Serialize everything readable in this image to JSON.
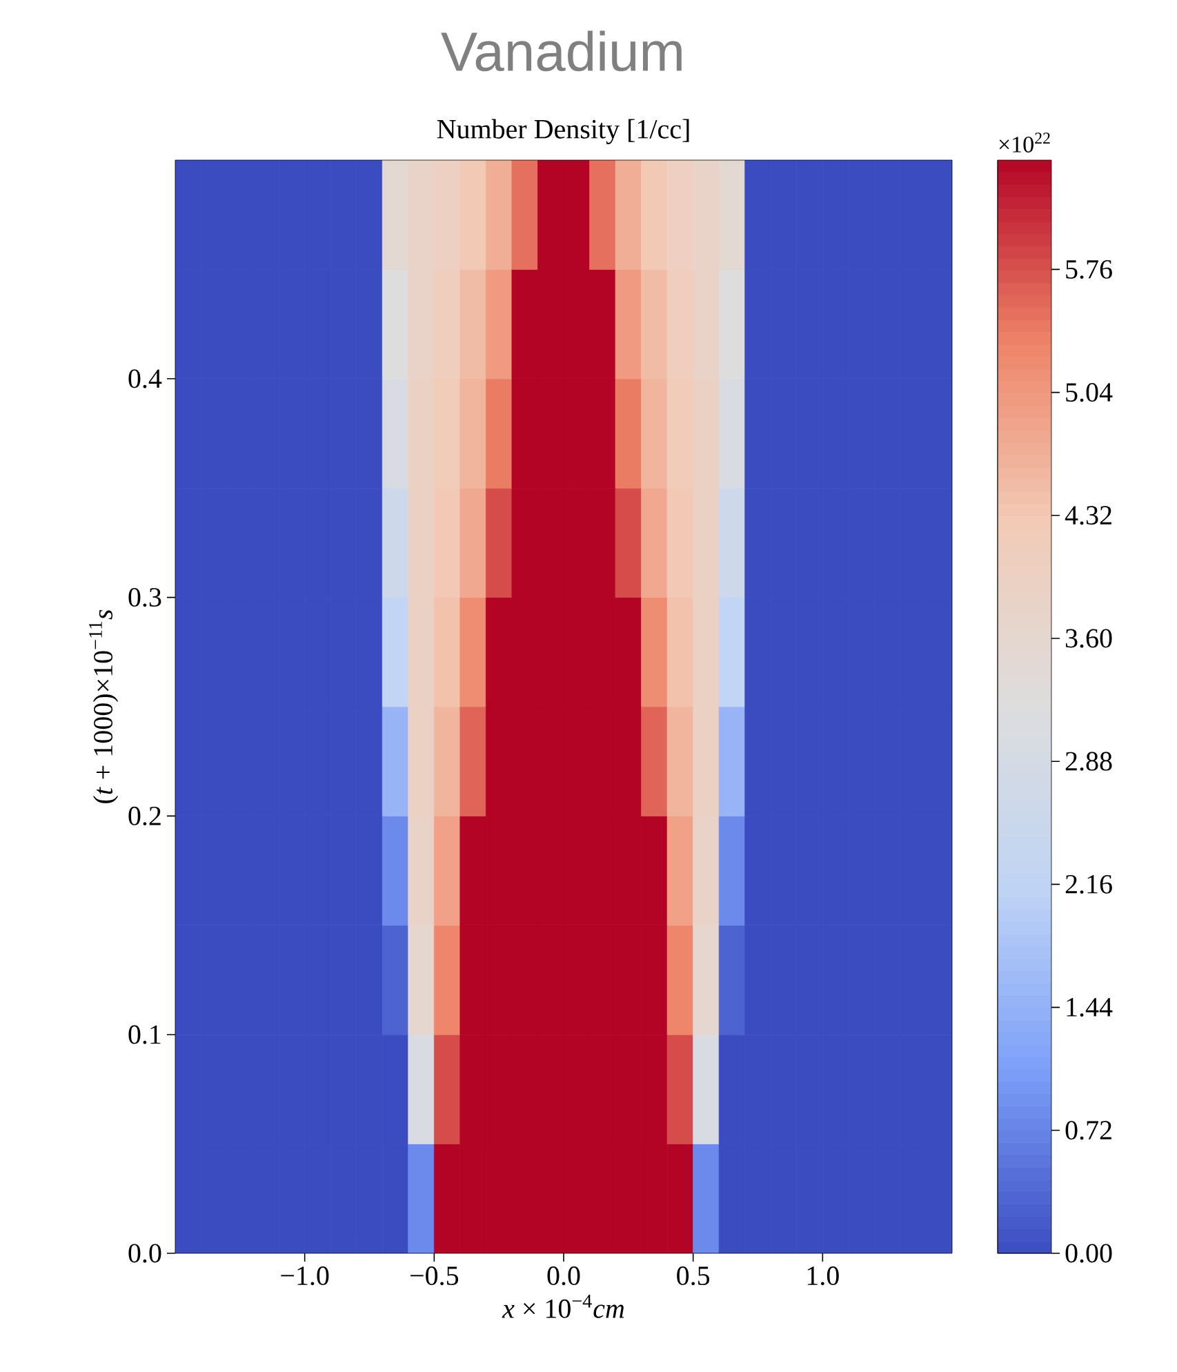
{
  "chart_data": {
    "type": "heatmap",
    "title": "Vanadium",
    "subtitle": "Number Density [1/cc]",
    "xlabel": "*x* × 10$^{−4}$*cm*",
    "ylabel": "(*t* + 1000)×10$^{−11}$*s*",
    "clabel": "×10$^{22}$",
    "x": [
      -1.45,
      -1.35,
      -1.25,
      -1.15,
      -1.05,
      -0.95,
      -0.85,
      -0.75,
      -0.65,
      -0.55,
      -0.45,
      -0.35,
      -0.25,
      -0.15,
      -0.05,
      0.05,
      0.15,
      0.25,
      0.35,
      0.45,
      0.55,
      0.65,
      0.75,
      0.85,
      0.95,
      1.05,
      1.15,
      1.25,
      1.35,
      1.45
    ],
    "y": [
      0.475,
      0.425,
      0.375,
      0.325,
      0.275,
      0.225,
      0.175,
      0.125,
      0.075,
      0.025
    ],
    "xlim": [
      -1.5,
      1.5
    ],
    "ylim": [
      0,
      0.5
    ],
    "xticks": [
      {
        "value": -1.0,
        "label": "−1.0"
      },
      {
        "value": -0.5,
        "label": "−0.5"
      },
      {
        "value": 0,
        "label": "0.0"
      },
      {
        "value": 0.5,
        "label": "0.5"
      },
      {
        "value": 1,
        "label": "1.0"
      }
    ],
    "yticks": [
      {
        "value": 0,
        "label": "0.0"
      },
      {
        "value": 0.1,
        "label": "0.1"
      },
      {
        "value": 0.2,
        "label": "0.2"
      },
      {
        "value": 0.3,
        "label": "0.3"
      },
      {
        "value": 0.4,
        "label": "0.4"
      }
    ],
    "clim": [
      0,
      6.4
    ],
    "cticks": [
      {
        "value": 0,
        "label": "0.00"
      },
      0.72,
      1.44,
      2.16,
      2.88,
      {
        "value": 3.6,
        "label": "3.60"
      },
      4.32,
      5.04,
      5.76
    ],
    "cells": [
      [
        0,
        0,
        0,
        0,
        0,
        0,
        0,
        0,
        3.5,
        3.8,
        4.0,
        4.3,
        4.7,
        5.5,
        6.4,
        6.4,
        5.5,
        4.7,
        4.3,
        4.0,
        3.8,
        3.5,
        0,
        0,
        0,
        0,
        0,
        0,
        0,
        0
      ],
      [
        0,
        0,
        0,
        0,
        0,
        0,
        0,
        0,
        3.2,
        3.8,
        4.1,
        4.5,
        5.0,
        6.4,
        6.4,
        6.4,
        6.4,
        5.0,
        4.5,
        4.1,
        3.8,
        3.2,
        0,
        0,
        0,
        0,
        0,
        0,
        0,
        0
      ],
      [
        0,
        0,
        0,
        0,
        0,
        0,
        0,
        0,
        3.0,
        3.9,
        4.2,
        4.6,
        5.4,
        6.4,
        6.4,
        6.4,
        6.4,
        5.4,
        4.6,
        4.2,
        3.9,
        3.0,
        0,
        0,
        0,
        0,
        0,
        0,
        0,
        0
      ],
      [
        0,
        0,
        0,
        0,
        0,
        0,
        0,
        0,
        2.6,
        3.9,
        4.3,
        4.8,
        5.8,
        6.4,
        6.4,
        6.4,
        6.4,
        5.8,
        4.8,
        4.3,
        3.9,
        2.6,
        0,
        0,
        0,
        0,
        0,
        0,
        0,
        0
      ],
      [
        0,
        0,
        0,
        0,
        0,
        0,
        0,
        0,
        2.2,
        3.9,
        4.4,
        5.2,
        6.4,
        6.4,
        6.4,
        6.4,
        6.4,
        6.4,
        5.2,
        4.4,
        3.9,
        2.2,
        0,
        0,
        0,
        0,
        0,
        0,
        0,
        0
      ],
      [
        0,
        0,
        0,
        0,
        0,
        0,
        0,
        0,
        1.5,
        3.9,
        4.6,
        5.6,
        6.4,
        6.4,
        6.4,
        6.4,
        6.4,
        6.4,
        5.6,
        4.6,
        3.9,
        1.5,
        0,
        0,
        0,
        0,
        0,
        0,
        0,
        0
      ],
      [
        0,
        0,
        0,
        0,
        0,
        0,
        0,
        0,
        0.8,
        3.8,
        4.9,
        6.4,
        6.4,
        6.4,
        6.4,
        6.4,
        6.4,
        6.4,
        6.4,
        4.9,
        3.8,
        0.8,
        0,
        0,
        0,
        0,
        0,
        0,
        0,
        0
      ],
      [
        0,
        0,
        0,
        0,
        0,
        0,
        0,
        0,
        0.3,
        3.6,
        5.3,
        6.4,
        6.4,
        6.4,
        6.4,
        6.4,
        6.4,
        6.4,
        6.4,
        5.3,
        3.6,
        0.3,
        0,
        0,
        0,
        0,
        0,
        0,
        0,
        0
      ],
      [
        0,
        0,
        0,
        0,
        0,
        0,
        0,
        0,
        0,
        3.0,
        5.8,
        6.4,
        6.4,
        6.4,
        6.4,
        6.4,
        6.4,
        6.4,
        6.4,
        5.8,
        3.0,
        0,
        0,
        0,
        0,
        0,
        0,
        0,
        0,
        0
      ],
      [
        0,
        0,
        0,
        0,
        0,
        0,
        0,
        0,
        0,
        0.8,
        6.4,
        6.4,
        6.4,
        6.4,
        6.4,
        6.4,
        6.4,
        6.4,
        6.4,
        6.4,
        0.8,
        0,
        0,
        0,
        0,
        0,
        0,
        0,
        0,
        0
      ]
    ]
  }
}
